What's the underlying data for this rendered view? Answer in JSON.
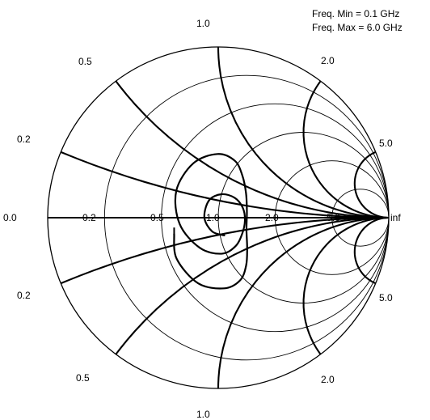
{
  "freq_info": {
    "min_label": "Freq. Min = 0.1 GHz",
    "max_label": "Freq. Max = 6.0 GHz"
  },
  "chart_data": {
    "type": "smith",
    "grid": true,
    "resistance_circles": [
      0,
      0.2,
      0.5,
      1.0,
      2.0,
      5.0
    ],
    "reactance_arcs": [
      0.2,
      0.5,
      1.0,
      2.0,
      5.0
    ],
    "real_axis_labels": [
      "0.0",
      "0.2",
      "0.5",
      "1.0",
      "2.0",
      "5.0",
      "inf"
    ],
    "upper_reactance_labels": [
      "1.0",
      "0.5",
      "2.0",
      "0.2",
      "5.0"
    ],
    "lower_reactance_labels": [
      "0.2",
      "5.0",
      "0.5",
      "2.0",
      "1.0"
    ],
    "trace": {
      "frequency_range_ghz": [
        0.1,
        6.0
      ],
      "points": [
        [
          0.58,
          -0.12
        ],
        [
          0.55,
          -0.3
        ],
        [
          0.6,
          -0.55
        ],
        [
          0.75,
          -0.75
        ],
        [
          0.95,
          -0.82
        ],
        [
          1.15,
          -0.72
        ],
        [
          1.3,
          -0.5
        ],
        [
          1.38,
          -0.2
        ],
        [
          1.4,
          0.1
        ],
        [
          1.32,
          0.4
        ],
        [
          1.15,
          0.62
        ],
        [
          0.95,
          0.72
        ],
        [
          0.75,
          0.65
        ],
        [
          0.62,
          0.45
        ],
        [
          0.58,
          0.2
        ],
        [
          0.63,
          -0.05
        ],
        [
          0.76,
          -0.28
        ],
        [
          0.95,
          -0.42
        ],
        [
          1.15,
          -0.4
        ],
        [
          1.3,
          -0.25
        ],
        [
          1.37,
          -0.05
        ],
        [
          1.33,
          0.15
        ],
        [
          1.18,
          0.28
        ],
        [
          1.0,
          0.28
        ],
        [
          0.88,
          0.18
        ],
        [
          0.85,
          0.0
        ],
        [
          0.92,
          -0.15
        ],
        [
          1.05,
          -0.22
        ]
      ]
    }
  }
}
